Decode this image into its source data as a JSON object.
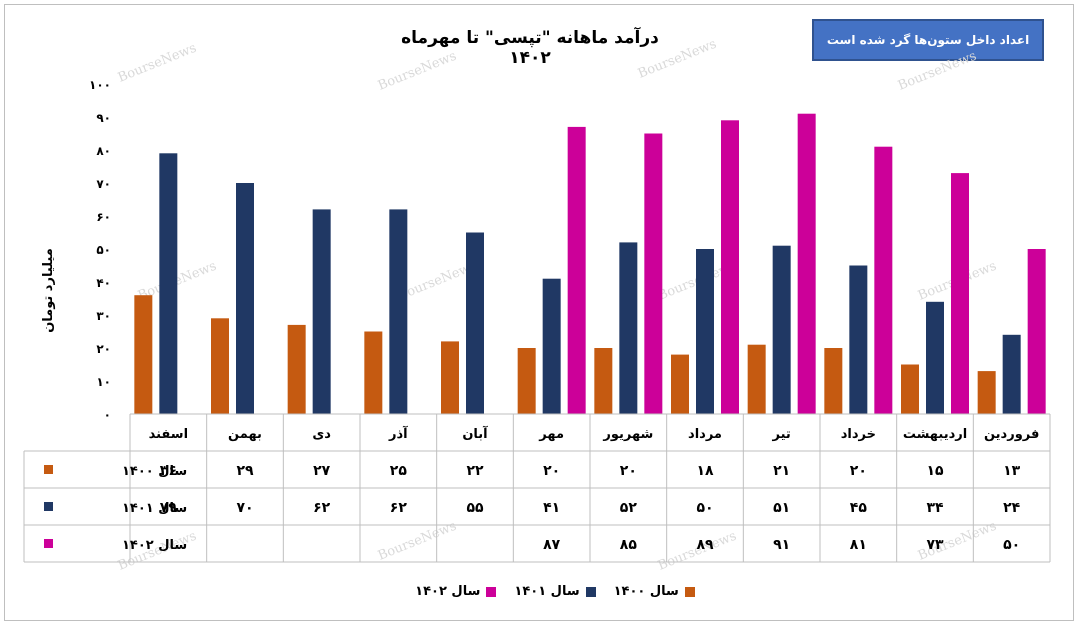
{
  "chart_data": {
    "type": "bar",
    "title": "درآمد ماهانه \"تپسی\" تا مهرماه ۱۴۰۲",
    "note": "اعداد داخل ستون‌ها گرد شده است",
    "ylabel": "میلیارد تومان",
    "ylim": [
      0,
      100
    ],
    "yticks": [
      "۰",
      "۱۰",
      "۲۰",
      "۳۰",
      "۴۰",
      "۵۰",
      "۶۰",
      "۷۰",
      "۸۰",
      "۹۰",
      "۱۰۰"
    ],
    "categories": [
      "فروردین",
      "اردیبهشت",
      "خرداد",
      "تیر",
      "مرداد",
      "شهریور",
      "مهر",
      "آبان",
      "آذر",
      "دی",
      "بهمن",
      "اسفند"
    ],
    "series": [
      {
        "name": "سال ۱۴۰۰",
        "color": "#c55a11",
        "values": [
          13,
          15,
          20,
          21,
          18,
          20,
          20,
          22,
          25,
          27,
          29,
          36
        ],
        "labels": [
          "۱۳",
          "۱۵",
          "۲۰",
          "۲۱",
          "۱۸",
          "۲۰",
          "۲۰",
          "۲۲",
          "۲۵",
          "۲۷",
          "۲۹",
          "۳۶"
        ]
      },
      {
        "name": "سال ۱۴۰۱",
        "color": "#203864",
        "values": [
          24,
          34,
          45,
          51,
          50,
          52,
          41,
          55,
          62,
          62,
          70,
          79
        ],
        "labels": [
          "۲۴",
          "۳۴",
          "۴۵",
          "۵۱",
          "۵۰",
          "۵۲",
          "۴۱",
          "۵۵",
          "۶۲",
          "۶۲",
          "۷۰",
          "۷۹"
        ]
      },
      {
        "name": "سال ۱۴۰۲",
        "color": "#cc0099",
        "values": [
          50,
          73,
          81,
          91,
          89,
          85,
          87,
          null,
          null,
          null,
          null,
          null
        ],
        "labels": [
          "۵۰",
          "۷۳",
          "۸۱",
          "۹۱",
          "۸۹",
          "۸۵",
          "۸۷",
          "",
          "",
          "",
          "",
          ""
        ]
      }
    ],
    "watermark": "BourseNews",
    "grid": false,
    "legend": "bottom",
    "data_table": true
  }
}
